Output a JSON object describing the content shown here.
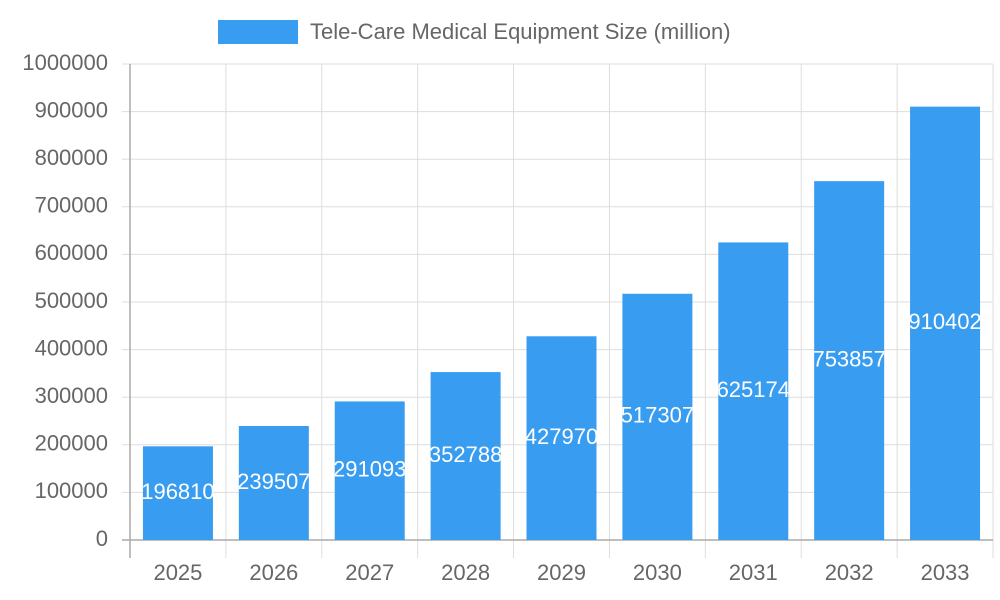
{
  "chart_data": {
    "type": "bar",
    "categories": [
      "2025",
      "2026",
      "2027",
      "2028",
      "2029",
      "2030",
      "2031",
      "2032",
      "2033"
    ],
    "series": [
      {
        "name": "Tele-Care Medical Equipment Size (million)",
        "color": "#389cf0",
        "values": [
          196810,
          239507,
          291093,
          352788,
          427970,
          517307,
          625174,
          753857,
          910402
        ]
      }
    ],
    "ylim": [
      0,
      1000000
    ],
    "yticks": [
      0,
      100000,
      200000,
      300000,
      400000,
      500000,
      600000,
      700000,
      800000,
      900000,
      1000000
    ],
    "grid": true,
    "legend": "top",
    "data_labels": true
  }
}
